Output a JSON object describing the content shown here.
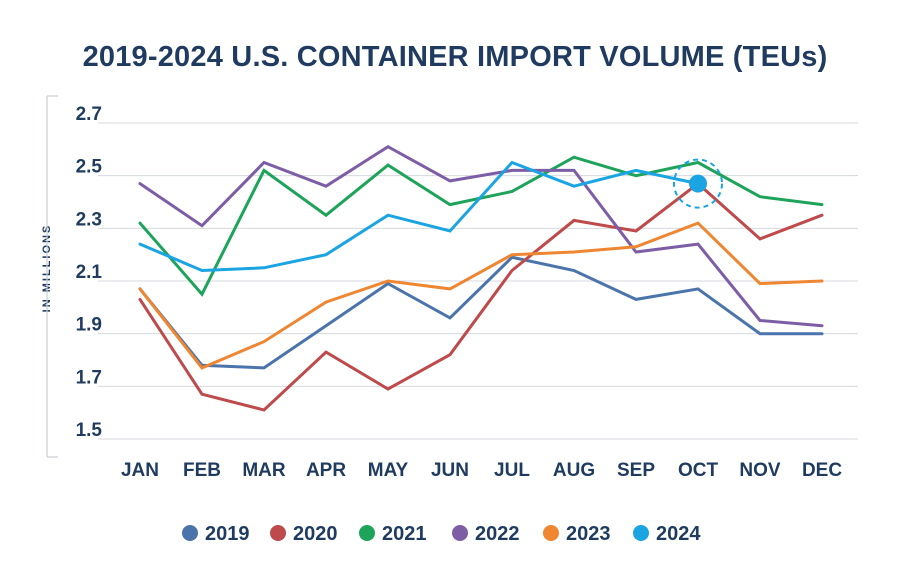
{
  "chart_data": {
    "type": "line",
    "title": "2019-2024 U.S. CONTAINER IMPORT VOLUME (TEUs)",
    "ylabel": "IN MILLIONS",
    "xlabel": "",
    "ylim": [
      1.5,
      2.7
    ],
    "yticks": [
      "2.7",
      "2.5",
      "2.3",
      "2.1",
      "1.9",
      "1.7",
      "1.5"
    ],
    "grid": true,
    "legend_position": "bottom",
    "categories": [
      "JAN",
      "FEB",
      "MAR",
      "APR",
      "MAY",
      "JUN",
      "JUL",
      "AUG",
      "SEP",
      "OCT",
      "NOV",
      "DEC"
    ],
    "series": [
      {
        "name": "2019",
        "color": "#4a74aa",
        "values": [
          2.07,
          1.78,
          1.77,
          1.93,
          2.09,
          1.96,
          2.19,
          2.14,
          2.03,
          2.07,
          1.9,
          1.9
        ]
      },
      {
        "name": "2020",
        "color": "#be4a4b",
        "values": [
          2.03,
          1.67,
          1.61,
          1.83,
          1.69,
          1.82,
          2.14,
          2.33,
          2.29,
          2.47,
          2.26,
          2.35
        ]
      },
      {
        "name": "2021",
        "color": "#1ea35a",
        "values": [
          2.32,
          2.05,
          2.52,
          2.35,
          2.54,
          2.39,
          2.44,
          2.57,
          2.5,
          2.55,
          2.42,
          2.39
        ]
      },
      {
        "name": "2022",
        "color": "#7d5ea6",
        "values": [
          2.47,
          2.31,
          2.55,
          2.46,
          2.61,
          2.48,
          2.52,
          2.52,
          2.21,
          2.24,
          1.95,
          1.93
        ]
      },
      {
        "name": "2023",
        "color": "#ee8632",
        "values": [
          2.07,
          1.77,
          1.87,
          2.02,
          2.1,
          2.07,
          2.2,
          2.21,
          2.23,
          2.32,
          2.09,
          2.1
        ]
      },
      {
        "name": "2024",
        "color": "#1aa4e2",
        "values": [
          2.24,
          2.14,
          2.15,
          2.2,
          2.35,
          2.29,
          2.55,
          2.46,
          2.52,
          2.47,
          null,
          null
        ]
      }
    ],
    "highlight": {
      "series": "2024",
      "category": "OCT",
      "value": 2.47
    }
  }
}
